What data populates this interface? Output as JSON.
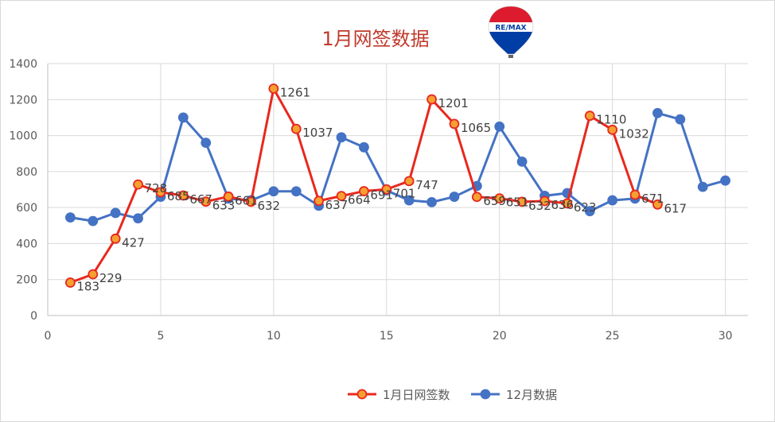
{
  "chart_data": {
    "type": "line",
    "title": "1月网签数据",
    "xlim": [
      0,
      31
    ],
    "ylim": [
      0,
      1400
    ],
    "xticks": [
      0,
      5,
      10,
      15,
      20,
      25,
      30
    ],
    "yticks": [
      0,
      200,
      400,
      600,
      800,
      1000,
      1200,
      1400
    ],
    "grid": "vertical-and-horizontal",
    "legend_position": "bottom",
    "series": [
      {
        "name": "1月日网签数",
        "color": "#e8281f",
        "marker_fill": "#f5a030",
        "x": [
          1,
          2,
          3,
          4,
          5,
          6,
          7,
          8,
          9,
          10,
          11,
          12,
          13,
          14,
          15,
          16,
          17,
          18,
          19,
          20,
          21,
          22,
          23,
          24,
          25,
          26,
          27
        ],
        "values": [
          183,
          229,
          427,
          728,
          685,
          667,
          633,
          661,
          632,
          1261,
          1037,
          637,
          664,
          691,
          701,
          747,
          1201,
          1065,
          659,
          651,
          632,
          636,
          623,
          1110,
          1032,
          671,
          617
        ],
        "labels": [
          "183",
          "229",
          "427",
          "728",
          "685",
          "667",
          "633",
          "661",
          "632",
          "1261",
          "1037",
          "637",
          "664",
          "691",
          "701",
          "747",
          "1201",
          "1065",
          "659",
          "651",
          "632",
          "636",
          "623",
          "1110",
          "1032",
          "671",
          "617"
        ]
      },
      {
        "name": "12月数据",
        "color": "#4472c4",
        "marker_fill": "#4472c4",
        "x": [
          1,
          2,
          3,
          4,
          5,
          6,
          7,
          8,
          9,
          10,
          11,
          12,
          13,
          14,
          15,
          16,
          17,
          18,
          19,
          20,
          21,
          22,
          23,
          24,
          25,
          26,
          27,
          28,
          29,
          30
        ],
        "values": [
          545,
          525,
          570,
          540,
          660,
          1100,
          960,
          650,
          640,
          690,
          690,
          610,
          990,
          935,
          695,
          640,
          630,
          660,
          720,
          1050,
          855,
          665,
          680,
          580,
          640,
          650,
          1125,
          1090,
          715,
          750
        ]
      }
    ]
  },
  "logo": {
    "text": "RE/MAX",
    "colors": [
      "#dc1c2e",
      "#ffffff",
      "#003da5"
    ]
  }
}
